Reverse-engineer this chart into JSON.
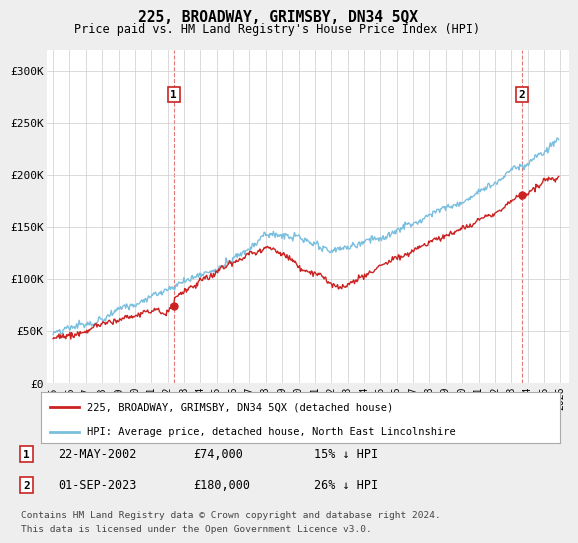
{
  "title": "225, BROADWAY, GRIMSBY, DN34 5QX",
  "subtitle": "Price paid vs. HM Land Registry's House Price Index (HPI)",
  "legend_line1": "225, BROADWAY, GRIMSBY, DN34 5QX (detached house)",
  "legend_line2": "HPI: Average price, detached house, North East Lincolnshire",
  "transaction1_date": "22-MAY-2002",
  "transaction1_price": "£74,000",
  "transaction1_hpi": "15% ↓ HPI",
  "transaction2_date": "01-SEP-2023",
  "transaction2_price": "£180,000",
  "transaction2_hpi": "26% ↓ HPI",
  "footnote1": "Contains HM Land Registry data © Crown copyright and database right 2024.",
  "footnote2": "This data is licensed under the Open Government Licence v3.0.",
  "hpi_color": "#7bbfde",
  "price_color": "#cc2222",
  "marker1_x": 2002.38,
  "marker1_y": 74000,
  "marker2_x": 2023.67,
  "marker2_y": 180000,
  "ylim": [
    0,
    320000
  ],
  "xlim_start": 1994.6,
  "xlim_end": 2026.5,
  "yticks": [
    0,
    50000,
    100000,
    150000,
    200000,
    250000,
    300000
  ],
  "ytick_labels": [
    "£0",
    "£50K",
    "£100K",
    "£150K",
    "£200K",
    "£250K",
    "£300K"
  ],
  "xticks": [
    1995,
    1996,
    1997,
    1998,
    1999,
    2000,
    2001,
    2002,
    2003,
    2004,
    2005,
    2006,
    2007,
    2008,
    2009,
    2010,
    2011,
    2012,
    2013,
    2014,
    2015,
    2016,
    2017,
    2018,
    2019,
    2020,
    2021,
    2022,
    2023,
    2024,
    2025,
    2026
  ],
  "bg_color": "#eeeeee",
  "plot_bg_color": "#ffffff"
}
